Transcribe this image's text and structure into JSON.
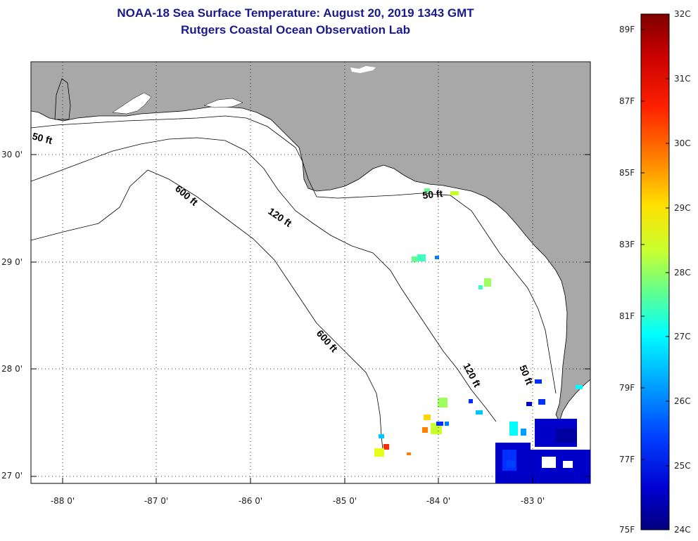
{
  "title": {
    "line1": "NOAA-18 Sea Surface Temperature:  August 20, 2019 1343 GMT",
    "line2": "Rutgers Coastal Ocean Observation Lab"
  },
  "axes": {
    "lat_labels": [
      {
        "value": 30,
        "text": "30 0'"
      },
      {
        "value": 29,
        "text": "29 0'"
      },
      {
        "value": 28,
        "text": "28 0'"
      },
      {
        "value": 27,
        "text": "27 0'"
      }
    ],
    "lon_labels": [
      {
        "value": -88,
        "text": "-88 0'"
      },
      {
        "value": -87,
        "text": "-87 0'"
      },
      {
        "value": -86,
        "text": "-86 0'"
      },
      {
        "value": -85,
        "text": "-85 0'"
      },
      {
        "value": -84,
        "text": "-84 0'"
      },
      {
        "value": -83,
        "text": "-83 0'"
      }
    ]
  },
  "contour_labels": [
    {
      "id": "c50a",
      "text": "50 ft"
    },
    {
      "id": "c600a",
      "text": "600 ft"
    },
    {
      "id": "c120a",
      "text": "120 ft"
    },
    {
      "id": "c50b",
      "text": "50 ft"
    },
    {
      "id": "c600b",
      "text": "600 ft"
    },
    {
      "id": "c120b",
      "text": "120 ft"
    },
    {
      "id": "c50c",
      "text": "50 ft"
    }
  ],
  "colorbar": {
    "fahrenheit": [
      "89F",
      "87F",
      "85F",
      "83F",
      "81F",
      "79F",
      "77F",
      "75F"
    ],
    "celsius": [
      "32C",
      "31C",
      "30C",
      "29C",
      "28C",
      "27C",
      "26C",
      "25C",
      "24C"
    ],
    "colors": [
      "#7f0000",
      "#d40000",
      "#ff2a00",
      "#ff7f00",
      "#ffd400",
      "#e6ff1a",
      "#9fff60",
      "#3fffbf",
      "#00ffff",
      "#00c8ff",
      "#0080ff",
      "#0030ff",
      "#0000c8",
      "#00007f"
    ]
  },
  "colors": {
    "land": "#a8a8a8",
    "title": "#1a1a8c"
  }
}
